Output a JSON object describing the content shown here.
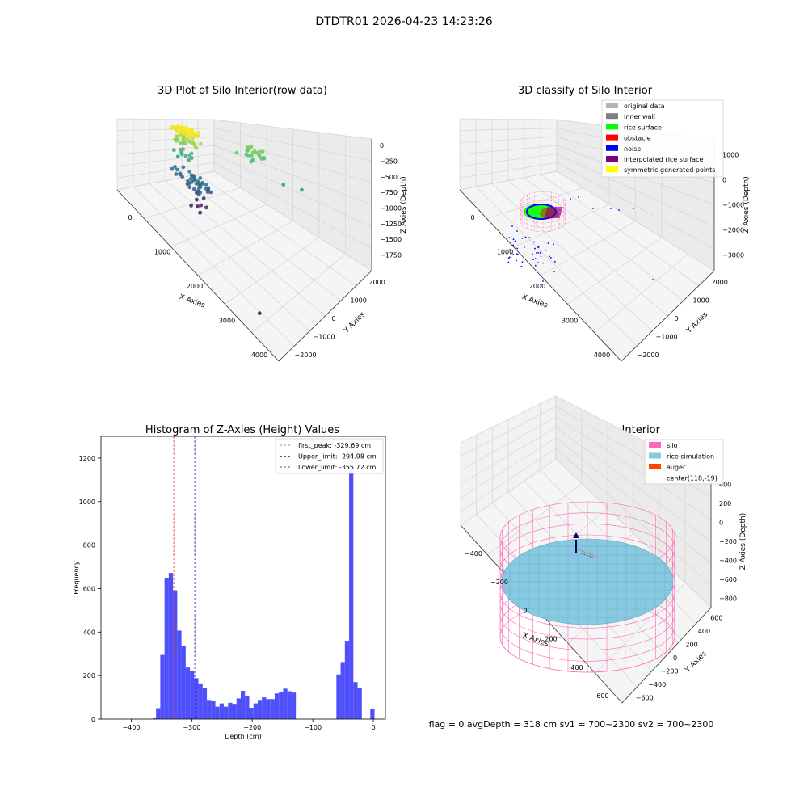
{
  "figure": {
    "suptitle": "DTDTR01 2026-04-23 14:23:26",
    "footer": "flag = 0     avgDepth = 318 cm  sv1 = 700~2300  sv2 = 700~2300"
  },
  "colors": {
    "histogram_bar": "#4f4ffb",
    "first_peak": "#e03030",
    "limits": "#1c1cb0",
    "silo": "#ff69b4",
    "rice": "#87c9e0",
    "auger": "#ff4500",
    "original": "#b3b3b3",
    "inner_wall": "#808080",
    "rice_surface": "#00ff00",
    "obstacle": "#ff0000",
    "noise": "#0000ff",
    "interp": "#800080",
    "symmetric": "#ffff00"
  },
  "chart_data": [
    {
      "type": "scatter",
      "title": "3D Plot of Silo Interior(row data)",
      "xlabel": "X Axies",
      "ylabel": "Y Axies",
      "zlabel": "Z Axies (Depth)",
      "x_ticks": [
        "0",
        "1000",
        "2000",
        "3000",
        "4000"
      ],
      "y_ticks": [
        "−2000",
        "−1000",
        "0",
        "1000",
        "2000"
      ],
      "z_ticks": [
        "0",
        "−250",
        "−500",
        "−750",
        "−1000",
        "−1250",
        "−1500",
        "−1750"
      ],
      "xlim": [
        -500,
        4500
      ],
      "ylim": [
        -2500,
        2500
      ],
      "zlim": [
        -1900,
        100
      ],
      "colormap": "viridis by depth",
      "clusters": [
        {
          "x": [
            -300,
            400
          ],
          "y": [
            -200,
            400
          ],
          "z": [
            -100,
            0
          ],
          "n": 60
        },
        {
          "x": [
            -200,
            500
          ],
          "y": [
            -100,
            300
          ],
          "z": [
            -400,
            -200
          ],
          "n": 25
        },
        {
          "x": [
            -300,
            300
          ],
          "y": [
            -200,
            200
          ],
          "z": [
            -1100,
            -600
          ],
          "n": 12
        },
        {
          "x": [
            -200,
            800
          ],
          "y": [
            -300,
            300
          ],
          "z": [
            -1400,
            -1150
          ],
          "n": 40
        },
        {
          "x": [
            400,
            900
          ],
          "y": [
            -300,
            200
          ],
          "z": [
            -1850,
            -1550
          ],
          "n": 8
        },
        {
          "x": [
            800,
            1500
          ],
          "y": [
            1300,
            2100
          ],
          "z": [
            -600,
            -350
          ],
          "n": 22
        }
      ],
      "outliers": [
        {
          "x": 2300,
          "y": 1500,
          "z": -800
        },
        {
          "x": 2700,
          "y": 1800,
          "z": -860
        },
        {
          "x": 3500,
          "y": -1800,
          "z": -1850
        }
      ]
    },
    {
      "type": "scatter",
      "title": "3D classify of Silo Interior",
      "xlabel": "X Axies",
      "ylabel": "Y Axies",
      "zlabel": "Z Axies (Depth)",
      "x_ticks": [
        "0",
        "1000",
        "2000",
        "3000",
        "4000"
      ],
      "y_ticks": [
        "−2000",
        "−1000",
        "0",
        "1000",
        "2000"
      ],
      "z_ticks": [
        "1000",
        "0",
        "−1000",
        "−2000",
        "−3000"
      ],
      "xlim": [
        -500,
        4500
      ],
      "ylim": [
        -2500,
        2500
      ],
      "zlim": [
        -3500,
        1200
      ],
      "legend": [
        "original data",
        "inner wall",
        "rice surface",
        "obstacle",
        "noise",
        "interpolated rice surface",
        "symmetric generated points"
      ],
      "legend_position": "top-right"
    },
    {
      "type": "bar",
      "title": "Histogram of Z-Axies (Height) Values",
      "xlabel": "Depth (cm)",
      "ylabel": "Frequency",
      "xlim": [
        -450,
        20
      ],
      "ylim": [
        0,
        1300
      ],
      "x_ticks": [
        -400,
        -300,
        -200,
        -100,
        0
      ],
      "y_ticks": [
        0,
        200,
        400,
        600,
        800,
        1000,
        1200
      ],
      "bin_width": 7,
      "bins": [
        [
          -364,
          5
        ],
        [
          -359,
          50
        ],
        [
          -352,
          295
        ],
        [
          -345,
          650
        ],
        [
          -338,
          672
        ],
        [
          -331,
          592
        ],
        [
          -324,
          407
        ],
        [
          -317,
          337
        ],
        [
          -310,
          237
        ],
        [
          -303,
          220
        ],
        [
          -296,
          188
        ],
        [
          -289,
          164
        ],
        [
          -282,
          142
        ],
        [
          -275,
          88
        ],
        [
          -268,
          82
        ],
        [
          -261,
          57
        ],
        [
          -254,
          72
        ],
        [
          -247,
          57
        ],
        [
          -240,
          75
        ],
        [
          -233,
          70
        ],
        [
          -226,
          95
        ],
        [
          -219,
          130
        ],
        [
          -212,
          108
        ],
        [
          -205,
          52
        ],
        [
          -198,
          72
        ],
        [
          -191,
          88
        ],
        [
          -184,
          100
        ],
        [
          -177,
          92
        ],
        [
          -170,
          92
        ],
        [
          -163,
          118
        ],
        [
          -156,
          125
        ],
        [
          -149,
          140
        ],
        [
          -142,
          128
        ],
        [
          -135,
          122
        ],
        [
          -128,
          205
        ],
        [
          -121,
          262
        ],
        [
          -114,
          360
        ],
        [
          -107,
          1225
        ],
        [
          -100,
          170
        ],
        [
          -93,
          142
        ]
      ],
      "bins_extra": [
        [
          -5,
          45
        ]
      ],
      "lines": [
        {
          "label": "first_peak: -329.69 cm",
          "x": -329.69,
          "color": "red"
        },
        {
          "label": "Upper_limit: -294.98 cm",
          "x": -294.98,
          "color": "blue"
        },
        {
          "label": "Lower_limit: -355.72 cm",
          "x": -355.72,
          "color": "blue"
        }
      ],
      "legend_position": "top-right"
    },
    {
      "type": "surface",
      "title": "3D simulation of Silo Interior",
      "xlabel": "X Axies",
      "ylabel": "Y Axies",
      "zlabel": "Z Axies (Depth)",
      "x_ticks": [
        "−400",
        "−200",
        "0",
        "200",
        "400",
        "600"
      ],
      "y_ticks": [
        "−600",
        "−400",
        "−200",
        "0",
        "200",
        "400",
        "600"
      ],
      "z_ticks": [
        "400",
        "200",
        "0",
        "−200",
        "−400",
        "−600",
        "−800"
      ],
      "xlim": [
        -600,
        800
      ],
      "ylim": [
        -700,
        700
      ],
      "zlim": [
        -900,
        500
      ],
      "legend": [
        "silo",
        "rice simulation",
        "auger",
        "center(118,-19)"
      ],
      "legend_position": "top-right"
    }
  ]
}
